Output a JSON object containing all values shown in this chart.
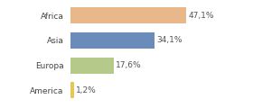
{
  "categories": [
    "Africa",
    "Asia",
    "Europa",
    "America"
  ],
  "values": [
    47.1,
    34.1,
    17.6,
    1.2
  ],
  "labels": [
    "47,1%",
    "34,1%",
    "17,6%",
    "1,2%"
  ],
  "bar_colors": [
    "#e8b88a",
    "#6b8cba",
    "#b5c98a",
    "#e8c855"
  ],
  "background_color": "#ffffff",
  "xlim": [
    0,
    62
  ],
  "bar_height": 0.65,
  "label_fontsize": 6.5,
  "tick_fontsize": 6.5
}
